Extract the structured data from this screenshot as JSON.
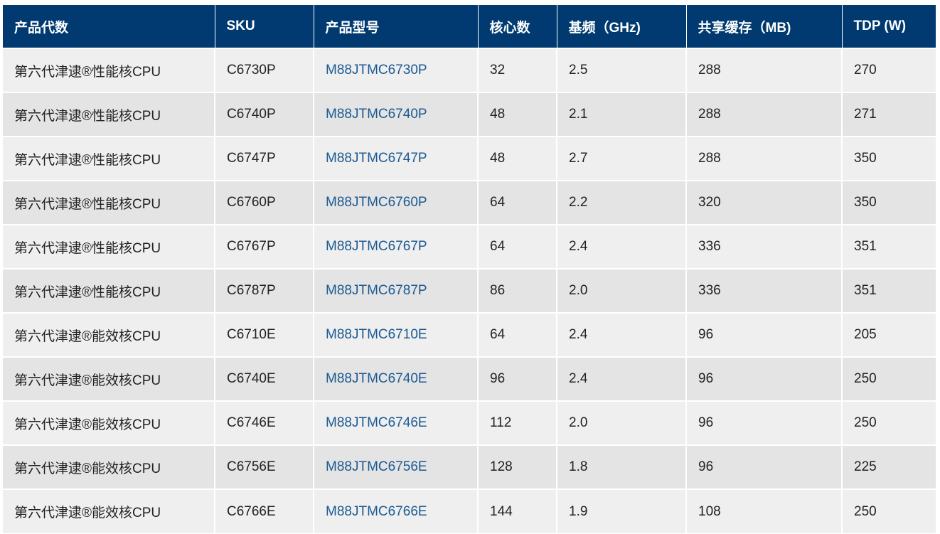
{
  "colors": {
    "header_bg": "#003a70",
    "link": "#1c5a92",
    "row_odd": "#efefef",
    "row_even": "#e4e4e4"
  },
  "headers": [
    "产品代数",
    "SKU",
    "产品型号",
    "核心数",
    "基频（GHz)",
    "共享缓存（MB)",
    "TDP (W)"
  ],
  "rows": [
    [
      "第六代津逮®性能核CPU",
      "C6730P",
      "M88JTMC6730P",
      "32",
      "2.5",
      "288",
      "270"
    ],
    [
      "第六代津逮®性能核CPU",
      "C6740P",
      "M88JTMC6740P",
      "48",
      "2.1",
      "288",
      "271"
    ],
    [
      "第六代津逮®性能核CPU",
      "C6747P",
      "M88JTMC6747P",
      "48",
      "2.7",
      "288",
      "350"
    ],
    [
      "第六代津逮®性能核CPU",
      "C6760P",
      "M88JTMC6760P",
      "64",
      "2.2",
      "320",
      "350"
    ],
    [
      "第六代津逮®性能核CPU",
      "C6767P",
      "M88JTMC6767P",
      "64",
      "2.4",
      "336",
      "351"
    ],
    [
      "第六代津逮®性能核CPU",
      "C6787P",
      "M88JTMC6787P",
      "86",
      "2.0",
      "336",
      "351"
    ],
    [
      "第六代津逮®能效核CPU",
      "C6710E",
      "M88JTMC6710E",
      "64",
      "2.4",
      "96",
      "205"
    ],
    [
      "第六代津逮®能效核CPU",
      "C6740E",
      "M88JTMC6740E",
      "96",
      "2.4",
      "96",
      "250"
    ],
    [
      "第六代津逮®能效核CPU",
      "C6746E",
      "M88JTMC6746E",
      "112",
      "2.0",
      "96",
      "250"
    ],
    [
      "第六代津逮®能效核CPU",
      "C6756E",
      "M88JTMC6756E",
      "128",
      "1.8",
      "96",
      "225"
    ],
    [
      "第六代津逮®能效核CPU",
      "C6766E",
      "M88JTMC6766E",
      "144",
      "1.9",
      "108",
      "250"
    ]
  ]
}
